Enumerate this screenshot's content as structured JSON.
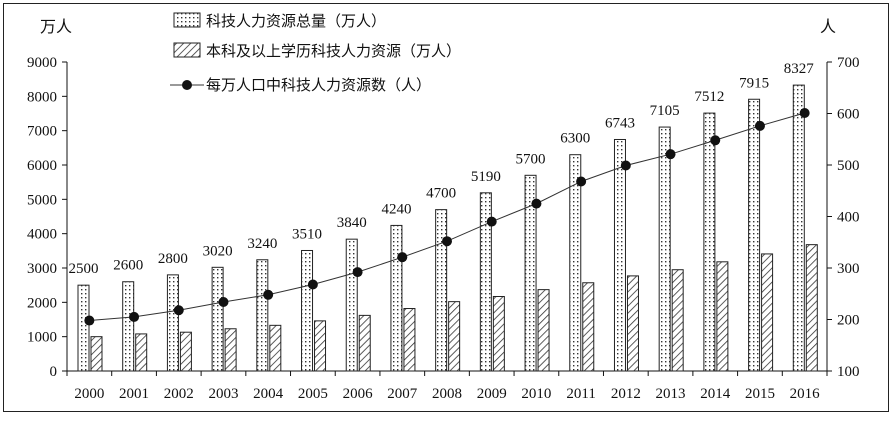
{
  "chart_data": {
    "type": "bar",
    "left_unit": "万人",
    "right_unit": "人",
    "categories": [
      "2000",
      "2001",
      "2002",
      "2003",
      "2004",
      "2005",
      "2006",
      "2007",
      "2008",
      "2009",
      "2010",
      "2011",
      "2012",
      "2013",
      "2014",
      "2015",
      "2016"
    ],
    "series": [
      {
        "name": "科技人力资源总量（万人）",
        "kind": "bar",
        "axis": "left",
        "values": [
          2500,
          2600,
          2800,
          3020,
          3240,
          3510,
          3840,
          4240,
          4700,
          5190,
          5700,
          6300,
          6743,
          7105,
          7512,
          7915,
          8327
        ]
      },
      {
        "name": "本科及以上学历科技人力资源（万人）",
        "kind": "bar",
        "axis": "left",
        "values": [
          1000,
          1080,
          1130,
          1230,
          1330,
          1460,
          1620,
          1820,
          2020,
          2170,
          2370,
          2570,
          2770,
          2950,
          3180,
          3410,
          3680
        ]
      },
      {
        "name": "每万人口中科技人力资源数（人）",
        "kind": "line",
        "axis": "right",
        "values": [
          198,
          205,
          218,
          234,
          248,
          268,
          292,
          321,
          352,
          390,
          425,
          468,
          499,
          521,
          548,
          576,
          601
        ]
      }
    ],
    "y_left": {
      "ylim": [
        0,
        9000
      ],
      "ticks": [
        "0",
        "1000",
        "2000",
        "3000",
        "4000",
        "5000",
        "6000",
        "7000",
        "8000",
        "9000"
      ]
    },
    "y_right": {
      "ylim": [
        100,
        700
      ],
      "ticks": [
        "100",
        "200",
        "300",
        "400",
        "500",
        "600",
        "700"
      ]
    },
    "data_labels": [
      "2500",
      "2600",
      "2800",
      "3020",
      "3240",
      "3510",
      "3840",
      "4240",
      "4700",
      "5190",
      "5700",
      "6300",
      "6743",
      "7105",
      "7512",
      "7915",
      "8327"
    ],
    "legend_position": "top",
    "grid": false
  }
}
